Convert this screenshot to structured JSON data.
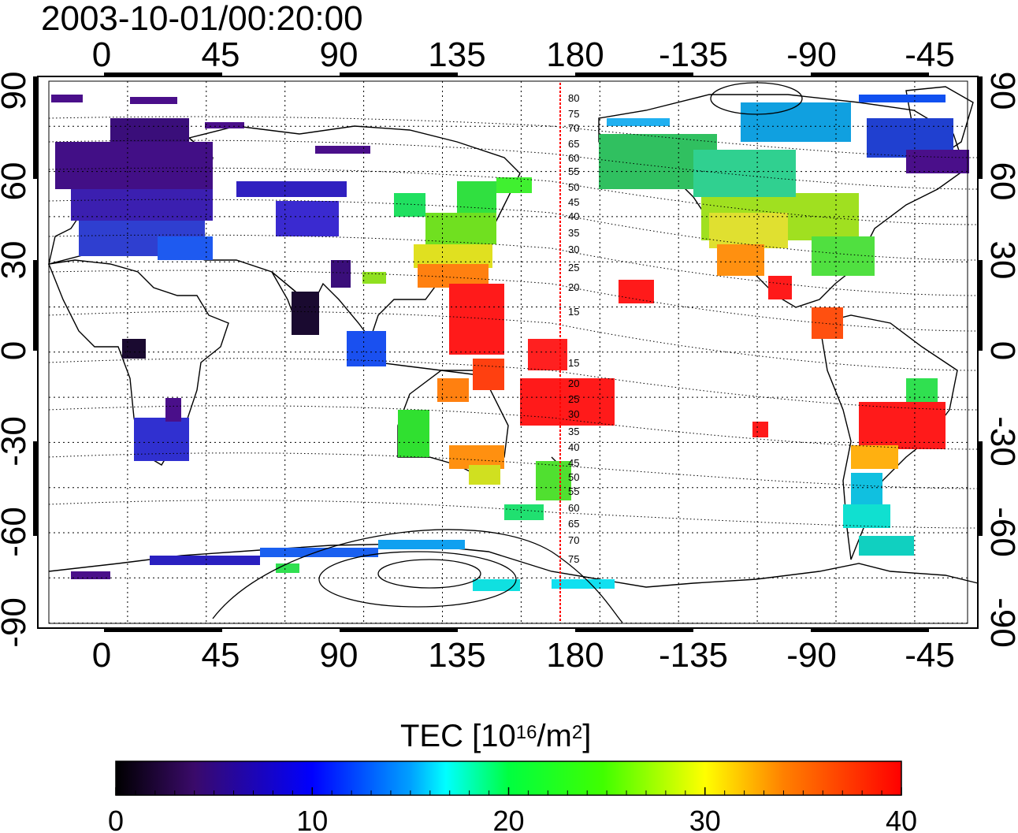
{
  "title": "2003-10-01/00:20:00",
  "colors": {
    "frame": "#000000",
    "grid": "#000000",
    "meridian": "#ff0000",
    "contour": "#000000"
  },
  "map": {
    "lon_ticks_top": [
      "0",
      "45",
      "90",
      "135",
      "180",
      "-135",
      "-90",
      "-45"
    ],
    "lon_ticks_bottom": [
      "0",
      "45",
      "90",
      "135",
      "180",
      "-135",
      "-90",
      "-45"
    ],
    "lat_ticks_left": [
      "90",
      "60",
      "30",
      "0",
      "-30",
      "-60",
      "-90"
    ],
    "lat_ticks_right": [
      "90",
      "60",
      "30",
      "0",
      "-30",
      "-60",
      "-90"
    ],
    "magnetic_lat_labels_north": [
      "80",
      "75",
      "70",
      "65",
      "60",
      "55",
      "50",
      "45",
      "40",
      "35",
      "30",
      "25",
      "20",
      "15"
    ],
    "magnetic_lat_labels_south": [
      "15",
      "20",
      "25",
      "30",
      "35",
      "40",
      "45",
      "50",
      "55",
      "60",
      "65",
      "70",
      "75"
    ]
  },
  "colorbar": {
    "title_main": "TEC  [10",
    "title_exp1": "16",
    "title_mid": "/m",
    "title_exp2": "2",
    "title_end": "]",
    "min": 0,
    "max": 40,
    "tick_labels": [
      "0",
      "10",
      "20",
      "30",
      "40"
    ]
  },
  "chart_data": {
    "type": "heatmap",
    "title": "2003-10-01/00:20:00",
    "xlabel": "",
    "ylabel": "",
    "xlim": [
      -25,
      335
    ],
    "ylim": [
      -90,
      90
    ],
    "colorbar_label": "TEC [10^16/m^2]",
    "colorbar_range": [
      0,
      40
    ],
    "regions": [
      {
        "lon": [
          -20,
          40
        ],
        "lat": [
          35,
          70
        ],
        "tec": 4
      },
      {
        "lon": [
          40,
          80
        ],
        "lat": [
          45,
          60
        ],
        "tec": 9
      },
      {
        "lon": [
          70,
          90
        ],
        "lat": [
          10,
          25
        ],
        "tec": 2
      },
      {
        "lon": [
          95,
          120
        ],
        "lat": [
          -10,
          5
        ],
        "tec": 12
      },
      {
        "lon": [
          125,
          160
        ],
        "lat": [
          25,
          50
        ],
        "tec": 25
      },
      {
        "lon": [
          135,
          175
        ],
        "lat": [
          -5,
          25
        ],
        "tec": 39
      },
      {
        "lon": [
          185,
          220
        ],
        "lat": [
          -35,
          -10
        ],
        "tec": 38
      },
      {
        "lon": [
          235,
          290
        ],
        "lat": [
          25,
          50
        ],
        "tec": 26
      },
      {
        "lon": [
          190,
          290
        ],
        "lat": [
          55,
          80
        ],
        "tec": 15
      },
      {
        "lon": [
          295,
          330
        ],
        "lat": [
          -35,
          -15
        ],
        "tec": 39
      },
      {
        "lon": [
          10,
          30
        ],
        "lat": [
          -35,
          -20
        ],
        "tec": 8
      },
      {
        "lon": [
          110,
          160
        ],
        "lat": [
          -40,
          -20
        ],
        "tec": 30
      },
      {
        "lon": [
          95,
          170
        ],
        "lat": [
          -80,
          -68
        ],
        "tec": 14
      }
    ]
  }
}
